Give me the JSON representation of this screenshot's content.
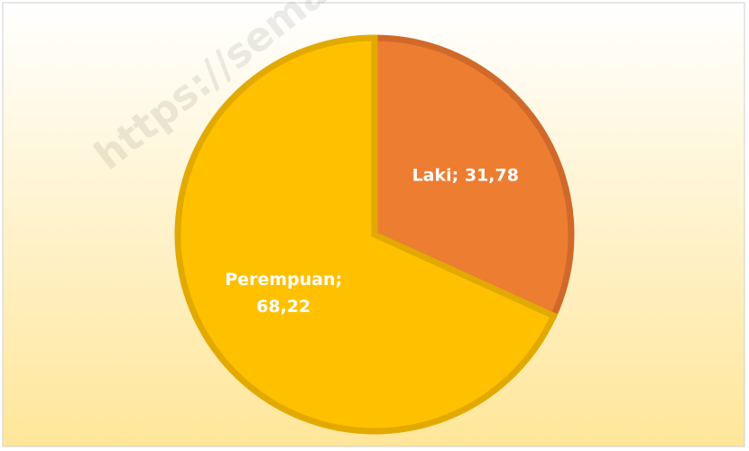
{
  "chart_data": {
    "type": "pie",
    "values": [
      31.78,
      68.22
    ],
    "value_labels": [
      "Laki; 31,78",
      "Perempuan; 68,22"
    ],
    "colors": [
      "#ed7d31",
      "#ffc000"
    ],
    "edge_colors": [
      "#d0692a",
      "#e2aa00"
    ],
    "start_angle": 0,
    "direction": "clockwise",
    "watermark": "https://sema"
  }
}
